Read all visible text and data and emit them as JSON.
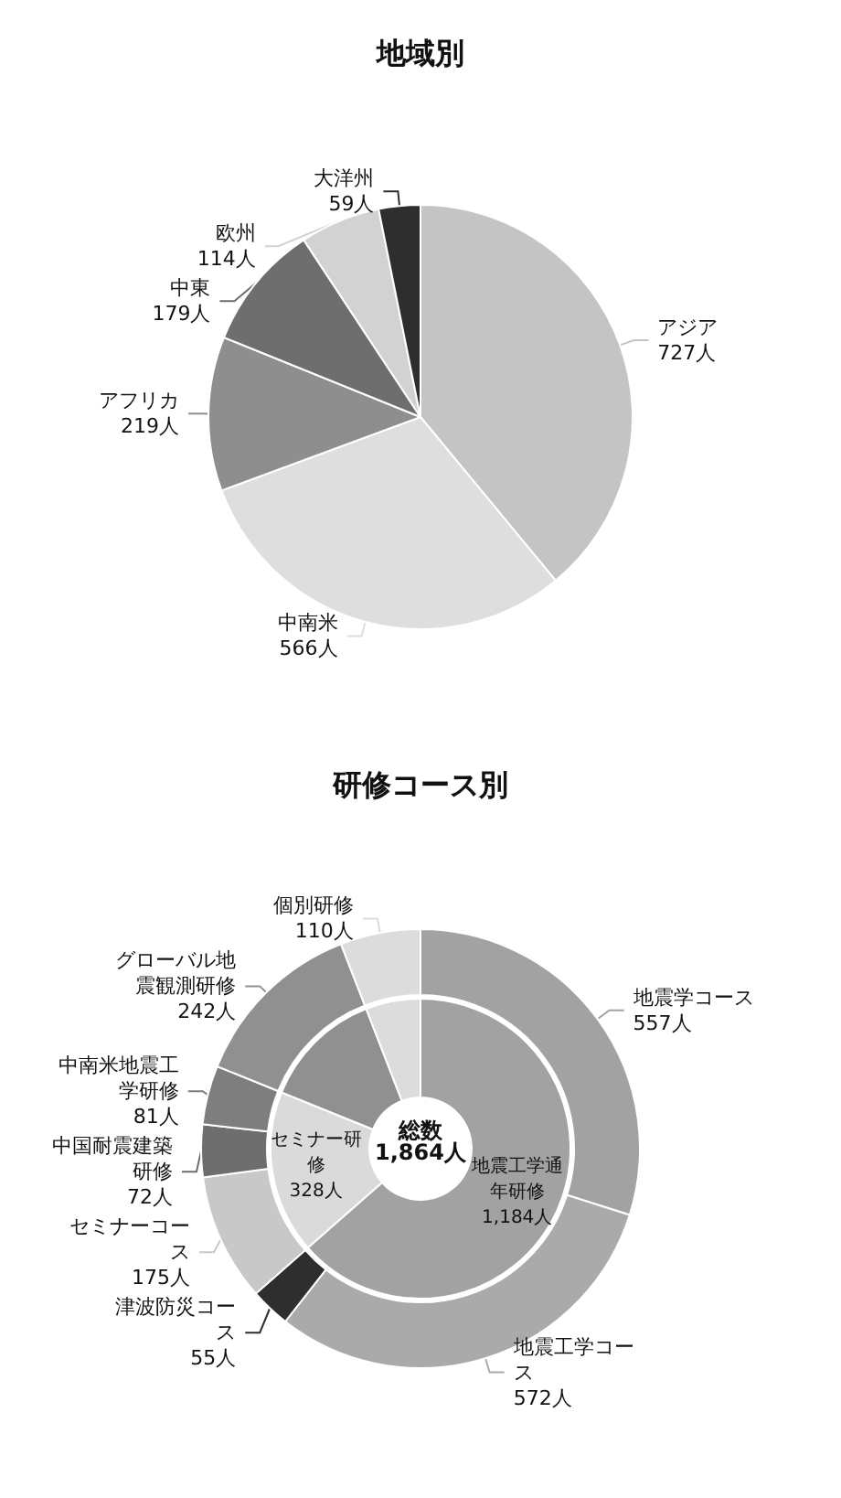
{
  "chart_data": [
    {
      "type": "pie",
      "title": "地域別",
      "categories": [
        "アジア",
        "中南米",
        "アフリカ",
        "中東",
        "欧州",
        "大洋州"
      ],
      "values": [
        727,
        566,
        219,
        179,
        114,
        59
      ],
      "value_labels": [
        "727人",
        "566人",
        "219人",
        "179人",
        "114人",
        "59人"
      ],
      "colors": [
        "#c4c4c4",
        "#dedede",
        "#8e8e8e",
        "#6e6e6e",
        "#d2d2d2",
        "#2e2e2e"
      ]
    },
    {
      "type": "donut",
      "title": "研修コース別",
      "categories": [
        "地震学コース",
        "地震工学コース",
        "津波防災コース",
        "セミナーコース",
        "中国耐震建築研修",
        "中南米地震工学研修",
        "グローバル地震観測研修",
        "個別研修"
      ],
      "values": [
        557,
        572,
        55,
        175,
        72,
        81,
        242,
        110
      ],
      "value_labels": [
        "557人",
        "572人",
        "55人",
        "175人",
        "72人",
        "81人",
        "242人",
        "110人"
      ],
      "colors": [
        "#a2a2a2",
        "#aaaaaa",
        "#2e2e2e",
        "#c8c8c8",
        "#6e6e6e",
        "#7e7e7e",
        "#909090",
        "#dcdcdc"
      ]
    },
    {
      "type": "donut",
      "annotations": [
        "総数\n1,864人"
      ],
      "categories": [
        "地震工学通年研修",
        "セミナー研修",
        null,
        null
      ],
      "values": [
        1184,
        328,
        242,
        110
      ],
      "value_labels": [
        "1,184人",
        "328人",
        null,
        null
      ],
      "colors": [
        "#a2a2a2",
        "#dadada",
        "#909090",
        "#dcdcdc"
      ]
    }
  ]
}
